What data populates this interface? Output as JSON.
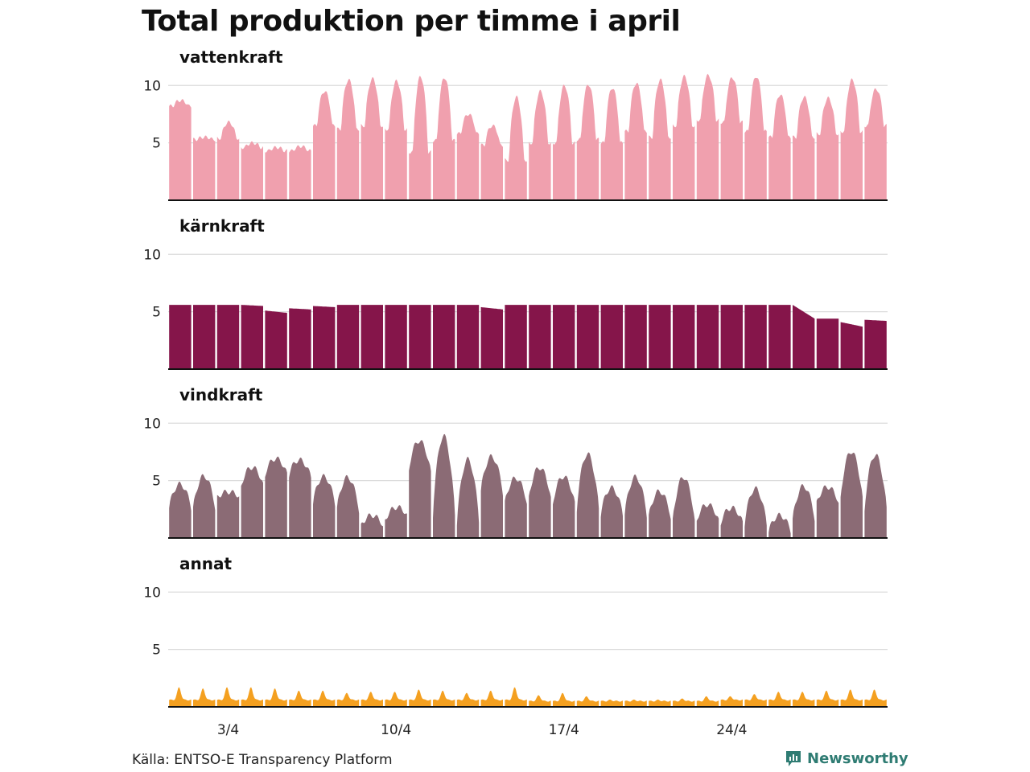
{
  "title": "Total produktion per timme i april",
  "source": "Källa: ENTSO-E Transparency Platform",
  "brand": {
    "name": "Newsworthy",
    "icon": "newsworthy-logo-icon",
    "color": "#2f7c73"
  },
  "chart_data": {
    "type": "area",
    "title": "Total produktion per timme i april",
    "x_unit": "dag i april (1–30)",
    "x_range": [
      1,
      31
    ],
    "x_tick_values": [
      3,
      10,
      17,
      24
    ],
    "x_tick_labels": [
      "3/4",
      "10/4",
      "17/4",
      "24/4"
    ],
    "y_range": [
      0,
      11
    ],
    "y_ticks": [
      5,
      10
    ],
    "grid": "horizontal",
    "panels": [
      {
        "name": "vattenkraft",
        "color": "#f0a0ae",
        "shape": "daily",
        "daily_min": [
          8.2,
          5.3,
          5.4,
          4.6,
          4.3,
          4.3,
          6.5,
          6.2,
          6.5,
          6.2,
          4.2,
          5.2,
          5.8,
          4.8,
          3.5,
          5.0,
          5.0,
          5.3,
          5.0,
          6.0,
          5.5,
          6.5,
          7.0,
          6.8,
          6.0,
          5.5,
          5.5,
          5.8,
          6.0,
          6.5
        ],
        "daily_max": [
          8.7,
          5.5,
          6.8,
          5.0,
          4.6,
          4.7,
          9.5,
          10.5,
          10.6,
          10.4,
          10.8,
          10.7,
          7.5,
          6.5,
          9.0,
          9.5,
          10.0,
          10.1,
          9.8,
          10.2,
          10.5,
          10.8,
          10.9,
          10.7,
          10.8,
          9.2,
          9.0,
          8.9,
          10.5,
          9.7
        ]
      },
      {
        "name": "kärnkraft",
        "color": "#85154a",
        "shape": "flat",
        "daily_min": [
          5.6,
          5.6,
          5.6,
          5.5,
          4.9,
          5.2,
          5.4,
          5.6,
          5.6,
          5.6,
          5.6,
          5.6,
          5.6,
          5.2,
          5.6,
          5.6,
          5.6,
          5.6,
          5.6,
          5.6,
          5.6,
          5.6,
          5.6,
          5.6,
          5.6,
          5.6,
          4.4,
          4.4,
          3.7,
          4.2
        ],
        "daily_max": [
          5.6,
          5.6,
          5.6,
          5.6,
          5.1,
          5.3,
          5.5,
          5.6,
          5.6,
          5.6,
          5.6,
          5.6,
          5.6,
          5.4,
          5.6,
          5.6,
          5.6,
          5.6,
          5.6,
          5.6,
          5.6,
          5.6,
          5.6,
          5.6,
          5.6,
          5.6,
          5.6,
          4.4,
          4.1,
          4.3
        ]
      },
      {
        "name": "vindkraft",
        "color": "#8b6b75",
        "shape": "wind",
        "daily_min": [
          2.6,
          2.5,
          3.5,
          4.5,
          5.5,
          5.5,
          3.0,
          2.5,
          1.0,
          1.5,
          6.0,
          2.0,
          1.2,
          4.0,
          3.0,
          3.5,
          3.0,
          2.5,
          2.0,
          2.0,
          1.8,
          1.5,
          1.5,
          1.3,
          1.2,
          0.5,
          1.5,
          3.0,
          3.5,
          2.5
        ],
        "daily_max": [
          4.8,
          5.5,
          4.0,
          6.2,
          7.0,
          7.0,
          5.5,
          5.5,
          2.0,
          2.5,
          8.8,
          9.3,
          7.0,
          7.3,
          5.3,
          6.3,
          5.5,
          7.6,
          4.5,
          5.5,
          4.2,
          5.5,
          3.0,
          2.7,
          4.5,
          2.0,
          4.6,
          4.5,
          7.8,
          7.5
        ]
      },
      {
        "name": "annat",
        "color": "#f4a020",
        "shape": "spiky",
        "daily_min": [
          0.6,
          0.6,
          0.6,
          0.6,
          0.6,
          0.6,
          0.6,
          0.6,
          0.6,
          0.6,
          0.6,
          0.6,
          0.6,
          0.6,
          0.6,
          0.5,
          0.5,
          0.5,
          0.5,
          0.5,
          0.5,
          0.5,
          0.5,
          0.6,
          0.6,
          0.6,
          0.6,
          0.6,
          0.6,
          0.6
        ],
        "daily_max": [
          1.7,
          1.6,
          1.7,
          1.7,
          1.6,
          1.4,
          1.4,
          1.2,
          1.3,
          1.3,
          1.5,
          1.4,
          1.2,
          1.4,
          1.7,
          1.0,
          1.2,
          0.9,
          0.6,
          0.6,
          0.6,
          0.7,
          0.9,
          0.9,
          1.1,
          1.3,
          1.3,
          1.4,
          1.5,
          1.5
        ]
      }
    ]
  }
}
